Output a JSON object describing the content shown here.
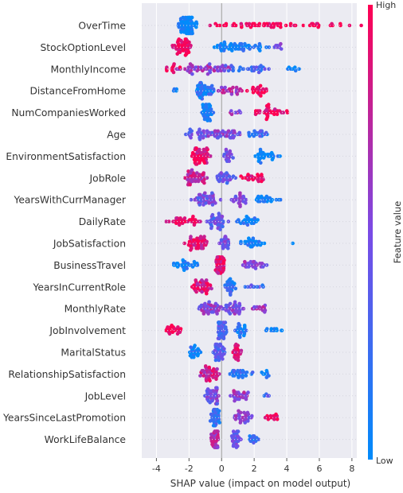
{
  "chart_data": {
    "type": "scatter",
    "subtype": "beeswarm",
    "xlabel": "SHAP value (impact on model output)",
    "xlim": [
      -4.9,
      8.3
    ],
    "xticks": [
      -4,
      -2,
      0,
      2,
      4,
      6,
      8
    ],
    "grid": true,
    "background": "#ebebf2",
    "colorbar": {
      "label": "Feature value",
      "high_label": "High",
      "low_label": "Low",
      "high_color": "#ff0052",
      "mid_color": "#7a4be6",
      "low_color": "#008bfb"
    },
    "features": [
      {
        "name": "OverTime",
        "clusters": [
          [
            -2.05,
            1.0,
            70,
            0.0
          ],
          [
            1.8,
            3.9,
            28,
            1.0
          ],
          [
            4.0,
            7.6,
            38,
            1.0
          ]
        ]
      },
      {
        "name": "StockOptionLevel",
        "clusters": [
          [
            -2.4,
            0.9,
            50,
            0.95
          ],
          [
            0.6,
            1.7,
            40,
            0.05
          ],
          [
            1.9,
            1.8,
            20,
            0.08
          ],
          [
            3.5,
            0.8,
            8,
            0.5
          ]
        ]
      },
      {
        "name": "MonthlyIncome",
        "clusters": [
          [
            -1.2,
            2.8,
            55,
            0.6
          ],
          [
            -3.0,
            0.9,
            10,
            1.0
          ],
          [
            1.5,
            2.5,
            30,
            0.3
          ],
          [
            4.2,
            0.9,
            8,
            0.05
          ]
        ]
      },
      {
        "name": "DistanceFromHome",
        "clusters": [
          [
            -1.1,
            1.0,
            50,
            0.15
          ],
          [
            0.5,
            1.2,
            25,
            0.7
          ],
          [
            2.3,
            1.0,
            24,
            0.95
          ],
          [
            -2.8,
            0.4,
            4,
            0.1
          ]
        ]
      },
      {
        "name": "NumCompaniesWorked",
        "clusters": [
          [
            -0.9,
            0.55,
            40,
            0.1
          ],
          [
            2.9,
            1.8,
            35,
            0.95
          ],
          [
            0.9,
            0.6,
            8,
            0.6
          ]
        ]
      },
      {
        "name": "Age",
        "clusters": [
          [
            -1.4,
            1.5,
            35,
            0.45
          ],
          [
            0.3,
            1.3,
            40,
            0.5
          ],
          [
            2.2,
            1.0,
            20,
            0.25
          ]
        ]
      },
      {
        "name": "EnvironmentSatisfaction",
        "clusters": [
          [
            -1.3,
            0.9,
            55,
            0.9
          ],
          [
            0.4,
            0.5,
            20,
            0.5
          ],
          [
            2.8,
            1.3,
            30,
            0.05
          ]
        ]
      },
      {
        "name": "JobRole",
        "clusters": [
          [
            -1.6,
            1.2,
            50,
            0.75
          ],
          [
            0.3,
            1.0,
            30,
            0.4
          ],
          [
            2.0,
            1.3,
            25,
            0.95
          ]
        ]
      },
      {
        "name": "YearsWithCurrManager",
        "clusters": [
          [
            -1.0,
            1.2,
            50,
            0.45
          ],
          [
            1.1,
            0.8,
            25,
            0.5
          ],
          [
            2.8,
            1.2,
            25,
            0.05
          ]
        ]
      },
      {
        "name": "DailyRate",
        "clusters": [
          [
            -2.2,
            1.6,
            35,
            0.95
          ],
          [
            -0.3,
            1.0,
            40,
            0.4
          ],
          [
            1.6,
            1.2,
            25,
            0.1
          ]
        ]
      },
      {
        "name": "JobSatisfaction",
        "clusters": [
          [
            -1.5,
            0.9,
            50,
            0.9
          ],
          [
            0.2,
            0.5,
            25,
            0.5
          ],
          [
            1.9,
            1.3,
            30,
            0.05
          ],
          [
            4.4,
            0.1,
            1,
            0.0
          ]
        ]
      },
      {
        "name": "BusinessTravel",
        "clusters": [
          [
            -2.2,
            1.4,
            30,
            0.05
          ],
          [
            -0.1,
            0.5,
            45,
            0.9
          ],
          [
            2.0,
            1.2,
            30,
            0.55
          ]
        ]
      },
      {
        "name": "YearsInCurrentRole",
        "clusters": [
          [
            -1.2,
            1.0,
            45,
            0.85
          ],
          [
            0.5,
            0.5,
            30,
            0.2
          ],
          [
            2.0,
            1.1,
            10,
            0.3
          ]
        ]
      },
      {
        "name": "MonthlyRate",
        "clusters": [
          [
            -0.6,
            1.2,
            50,
            0.55
          ],
          [
            0.8,
            0.9,
            35,
            0.5
          ],
          [
            2.3,
            0.9,
            15,
            0.6
          ]
        ]
      },
      {
        "name": "JobInvolvement",
        "clusters": [
          [
            -3.0,
            1.0,
            25,
            0.98
          ],
          [
            0.0,
            0.4,
            45,
            0.35
          ],
          [
            1.2,
            0.6,
            25,
            0.1
          ],
          [
            3.2,
            0.9,
            12,
            0.05
          ]
        ]
      },
      {
        "name": "MaritalStatus",
        "clusters": [
          [
            -1.6,
            0.6,
            25,
            0.1
          ],
          [
            -0.2,
            0.6,
            40,
            0.35
          ],
          [
            1.0,
            0.5,
            25,
            0.9
          ]
        ]
      },
      {
        "name": "RelationshipSatisfaction",
        "clusters": [
          [
            -0.7,
            0.9,
            45,
            0.8
          ],
          [
            1.2,
            1.0,
            30,
            0.2
          ],
          [
            2.7,
            0.6,
            8,
            0.1
          ]
        ]
      },
      {
        "name": "JobLevel",
        "clusters": [
          [
            -0.6,
            0.8,
            45,
            0.5
          ],
          [
            1.1,
            1.0,
            30,
            0.6
          ],
          [
            2.8,
            0.5,
            4,
            0.3
          ]
        ]
      },
      {
        "name": "YearsSinceLastPromotion",
        "clusters": [
          [
            -0.4,
            0.5,
            40,
            0.2
          ],
          [
            1.3,
            1.0,
            30,
            0.55
          ],
          [
            3.1,
            0.7,
            15,
            0.95
          ]
        ]
      },
      {
        "name": "WorkLifeBalance",
        "clusters": [
          [
            -0.4,
            0.5,
            40,
            0.7
          ],
          [
            0.8,
            0.6,
            30,
            0.4
          ],
          [
            2.0,
            0.5,
            15,
            0.2
          ]
        ]
      }
    ]
  }
}
